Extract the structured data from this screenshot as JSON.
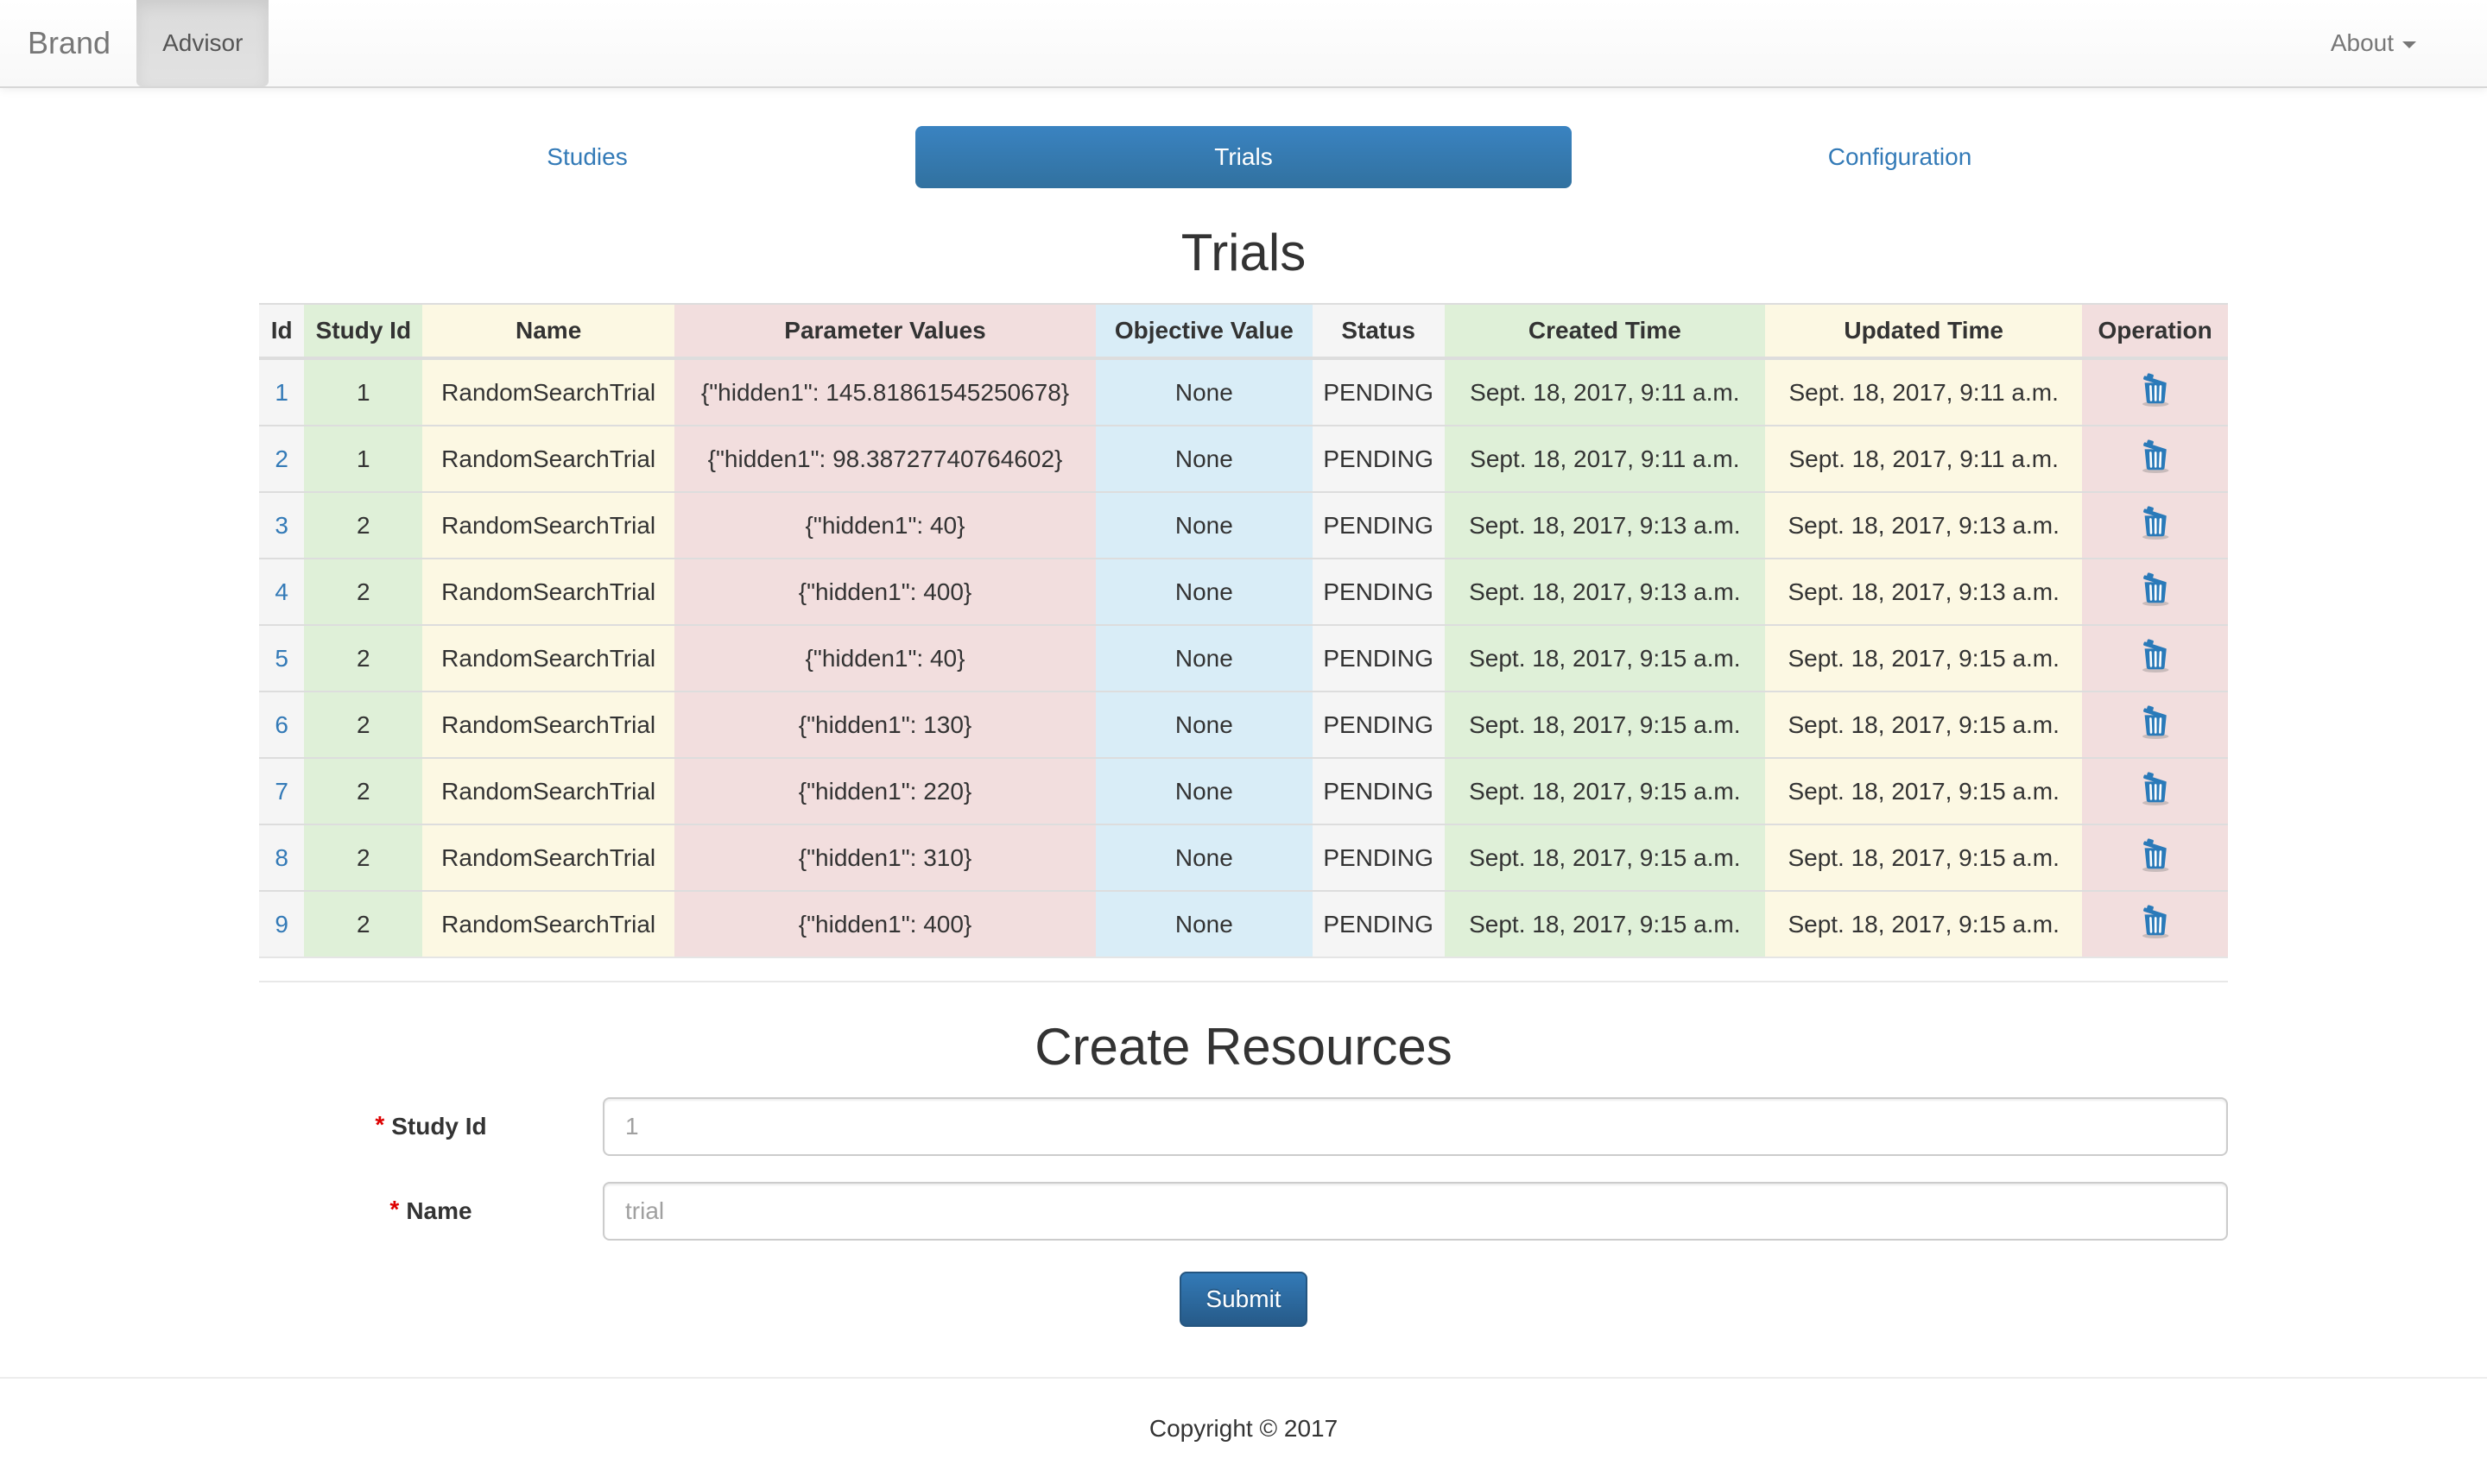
{
  "navbar": {
    "brand": "Brand",
    "items": [
      {
        "label": "Advisor",
        "active": true
      }
    ],
    "right_items": [
      {
        "label": "About",
        "has_caret": true
      }
    ]
  },
  "tabs": [
    {
      "label": "Studies",
      "active": false
    },
    {
      "label": "Trials",
      "active": true
    },
    {
      "label": "Configuration",
      "active": false
    }
  ],
  "table": {
    "title": "Trials",
    "columns": [
      {
        "key": "id",
        "label": "Id",
        "tone": "active"
      },
      {
        "key": "study_id",
        "label": "Study Id",
        "tone": "success"
      },
      {
        "key": "name",
        "label": "Name",
        "tone": "warning"
      },
      {
        "key": "parameter_values",
        "label": "Parameter Values",
        "tone": "danger"
      },
      {
        "key": "objective_value",
        "label": "Objective Value",
        "tone": "info"
      },
      {
        "key": "status",
        "label": "Status",
        "tone": "active"
      },
      {
        "key": "created_time",
        "label": "Created Time",
        "tone": "success"
      },
      {
        "key": "updated_time",
        "label": "Updated Time",
        "tone": "warning"
      },
      {
        "key": "operation",
        "label": "Operation",
        "tone": "danger"
      }
    ],
    "operation_icon": "trash-icon",
    "rows": [
      {
        "id": "1",
        "study_id": "1",
        "name": "RandomSearchTrial",
        "parameter_values": "{\"hidden1\": 145.81861545250678}",
        "objective_value": "None",
        "status": "PENDING",
        "created_time": "Sept. 18, 2017, 9:11 a.m.",
        "updated_time": "Sept. 18, 2017, 9:11 a.m."
      },
      {
        "id": "2",
        "study_id": "1",
        "name": "RandomSearchTrial",
        "parameter_values": "{\"hidden1\": 98.38727740764602}",
        "objective_value": "None",
        "status": "PENDING",
        "created_time": "Sept. 18, 2017, 9:11 a.m.",
        "updated_time": "Sept. 18, 2017, 9:11 a.m."
      },
      {
        "id": "3",
        "study_id": "2",
        "name": "RandomSearchTrial",
        "parameter_values": "{\"hidden1\": 40}",
        "objective_value": "None",
        "status": "PENDING",
        "created_time": "Sept. 18, 2017, 9:13 a.m.",
        "updated_time": "Sept. 18, 2017, 9:13 a.m."
      },
      {
        "id": "4",
        "study_id": "2",
        "name": "RandomSearchTrial",
        "parameter_values": "{\"hidden1\": 400}",
        "objective_value": "None",
        "status": "PENDING",
        "created_time": "Sept. 18, 2017, 9:13 a.m.",
        "updated_time": "Sept. 18, 2017, 9:13 a.m."
      },
      {
        "id": "5",
        "study_id": "2",
        "name": "RandomSearchTrial",
        "parameter_values": "{\"hidden1\": 40}",
        "objective_value": "None",
        "status": "PENDING",
        "created_time": "Sept. 18, 2017, 9:15 a.m.",
        "updated_time": "Sept. 18, 2017, 9:15 a.m."
      },
      {
        "id": "6",
        "study_id": "2",
        "name": "RandomSearchTrial",
        "parameter_values": "{\"hidden1\": 130}",
        "objective_value": "None",
        "status": "PENDING",
        "created_time": "Sept. 18, 2017, 9:15 a.m.",
        "updated_time": "Sept. 18, 2017, 9:15 a.m."
      },
      {
        "id": "7",
        "study_id": "2",
        "name": "RandomSearchTrial",
        "parameter_values": "{\"hidden1\": 220}",
        "objective_value": "None",
        "status": "PENDING",
        "created_time": "Sept. 18, 2017, 9:15 a.m.",
        "updated_time": "Sept. 18, 2017, 9:15 a.m."
      },
      {
        "id": "8",
        "study_id": "2",
        "name": "RandomSearchTrial",
        "parameter_values": "{\"hidden1\": 310}",
        "objective_value": "None",
        "status": "PENDING",
        "created_time": "Sept. 18, 2017, 9:15 a.m.",
        "updated_time": "Sept. 18, 2017, 9:15 a.m."
      },
      {
        "id": "9",
        "study_id": "2",
        "name": "RandomSearchTrial",
        "parameter_values": "{\"hidden1\": 400}",
        "objective_value": "None",
        "status": "PENDING",
        "created_time": "Sept. 18, 2017, 9:15 a.m.",
        "updated_time": "Sept. 18, 2017, 9:15 a.m."
      }
    ]
  },
  "form": {
    "title": "Create Resources",
    "fields": [
      {
        "label": "Study Id",
        "required": true,
        "placeholder": "1",
        "value": ""
      },
      {
        "label": "Name",
        "required": true,
        "placeholder": "trial",
        "value": ""
      }
    ],
    "submit_label": "Submit"
  },
  "footer": {
    "copyright": "Copyright © 2017"
  },
  "colors": {
    "accent_blue": "#337ab7",
    "button_gradient_top": "#337ab7",
    "button_gradient_bottom": "#265a88",
    "navbar_active_gray": "#dedede",
    "tone_active": "#f5f5f5",
    "tone_success": "#dff0d8",
    "tone_warning": "#fcf8e3",
    "tone_danger": "#f2dede",
    "tone_info": "#d9edf7",
    "required_star": "#d00000"
  }
}
